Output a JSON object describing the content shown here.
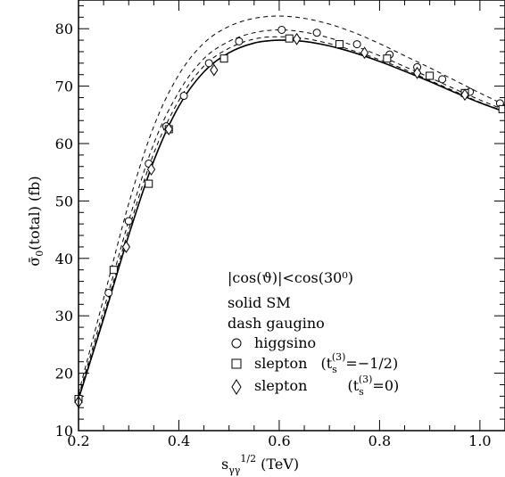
{
  "chart_data": {
    "type": "line",
    "xlabel": "s_γγ^1/2 (TeV)",
    "ylabel": "σ̄₀(total) (fb)",
    "xlim": [
      0.2,
      1.05
    ],
    "ylim": [
      10,
      85
    ],
    "x_ticks": [
      "0.2",
      "0.4",
      "0.6",
      "0.8",
      "1.0"
    ],
    "y_ticks": [
      "10",
      "20",
      "30",
      "40",
      "50",
      "60",
      "70",
      "80"
    ],
    "annotation": "|cos(ϑ)|<cos(30⁰)",
    "series": [
      {
        "name": "SM",
        "style": "solid",
        "x": [
          0.2,
          0.25,
          0.3,
          0.35,
          0.4,
          0.45,
          0.5,
          0.55,
          0.6,
          0.65,
          0.7,
          0.75,
          0.8,
          0.85,
          0.9,
          0.95,
          1.0,
          1.05
        ],
        "y": [
          15.5,
          29.5,
          44.0,
          57.0,
          66.5,
          72.5,
          75.8,
          77.5,
          78.0,
          77.8,
          77.0,
          75.8,
          74.3,
          72.6,
          70.8,
          68.9,
          67.1,
          65.5
        ]
      },
      {
        "name": "gaugino",
        "style": "dash",
        "x": [
          0.2,
          0.25,
          0.3,
          0.35,
          0.4,
          0.45,
          0.5,
          0.55,
          0.6,
          0.65,
          0.7,
          0.75,
          0.8,
          0.85,
          0.9,
          0.95,
          1.0,
          1.05
        ],
        "y": [
          16.5,
          33.0,
          49.5,
          63.0,
          72.0,
          77.5,
          80.4,
          81.8,
          82.2,
          81.8,
          80.8,
          79.3,
          77.4,
          75.3,
          73.2,
          71.0,
          68.8,
          66.7
        ]
      },
      {
        "name": "gaugino-2",
        "style": "dash",
        "x": [
          0.2,
          0.25,
          0.3,
          0.35,
          0.4,
          0.45,
          0.5,
          0.55,
          0.6,
          0.65,
          0.7,
          0.75,
          0.8,
          0.85,
          0.9,
          0.95,
          1.0,
          1.05
        ],
        "y": [
          16.0,
          31.0,
          46.5,
          60.0,
          69.0,
          74.8,
          77.8,
          79.3,
          79.8,
          79.4,
          78.4,
          77.0,
          75.3,
          73.4,
          71.5,
          69.5,
          67.6,
          65.8
        ]
      },
      {
        "name": "gaugino-3",
        "style": "dash",
        "x": [
          0.2,
          0.25,
          0.3,
          0.35,
          0.4,
          0.45,
          0.5,
          0.55,
          0.6,
          0.65,
          0.7,
          0.75,
          0.8,
          0.85,
          0.9,
          0.95,
          1.0,
          1.05
        ],
        "y": [
          15.7,
          30.0,
          45.0,
          58.3,
          67.5,
          73.5,
          76.6,
          78.2,
          78.6,
          78.3,
          77.4,
          76.1,
          74.6,
          72.9,
          71.0,
          69.1,
          67.2,
          65.6
        ]
      },
      {
        "name": "higgsino",
        "marker": "circle",
        "x": [
          0.2,
          0.26,
          0.3,
          0.34,
          0.375,
          0.41,
          0.46,
          0.52,
          0.605,
          0.675,
          0.755,
          0.82,
          0.875,
          0.925,
          0.98,
          1.04
        ],
        "y": [
          15.5,
          34.0,
          46.5,
          56.5,
          63.0,
          68.3,
          74.0,
          77.8,
          79.8,
          79.3,
          77.3,
          75.5,
          73.3,
          71.2,
          69.0,
          67.0
        ]
      },
      {
        "name": "slepton (t_s^(3)=-1/2)",
        "marker": "square",
        "x": [
          0.2,
          0.27,
          0.34,
          0.38,
          0.49,
          0.62,
          0.72,
          0.815,
          0.9,
          0.97,
          1.045
        ],
        "y": [
          15.5,
          38.0,
          53.0,
          62.5,
          74.8,
          78.3,
          77.3,
          74.8,
          71.8,
          68.8,
          66.0
        ]
      },
      {
        "name": "slepton (t_s^(3)=0)",
        "marker": "diamond",
        "x": [
          0.2,
          0.295,
          0.345,
          0.38,
          0.47,
          0.635,
          0.77,
          0.875,
          0.97
        ],
        "y": [
          15.0,
          42.0,
          55.5,
          62.5,
          72.8,
          78.2,
          75.8,
          72.3,
          68.5
        ]
      }
    ],
    "legend": {
      "solid_label": "solid SM",
      "dash_label": "dash gaugino",
      "higgsino_label": "higgsino",
      "slepton1_prefix": "slepton",
      "slepton1_suffix": "=−1/2)",
      "slepton2_prefix": "slepton",
      "slepton2_suffix": "=0)"
    },
    "grid": false
  }
}
